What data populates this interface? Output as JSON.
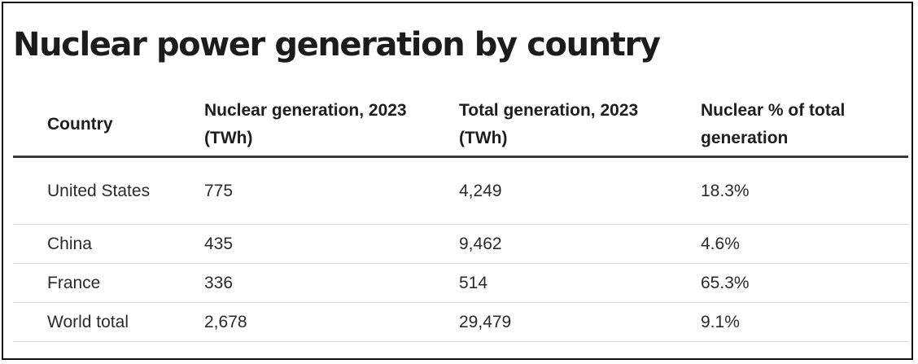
{
  "chart_data": {
    "type": "table",
    "title": "Nuclear power generation by country",
    "columns": [
      "Country",
      "Nuclear generation, 2023 (TWh)",
      "Total generation, 2023 (TWh)",
      "Nuclear % of total generation"
    ],
    "rows": [
      [
        "United States",
        "775",
        "4,249",
        "18.3%"
      ],
      [
        "China",
        "435",
        "9,462",
        "4.6%"
      ],
      [
        "France",
        "336",
        "514",
        "65.3%"
      ],
      [
        "World total",
        "2,678",
        "29,479",
        "9.1%"
      ]
    ]
  }
}
